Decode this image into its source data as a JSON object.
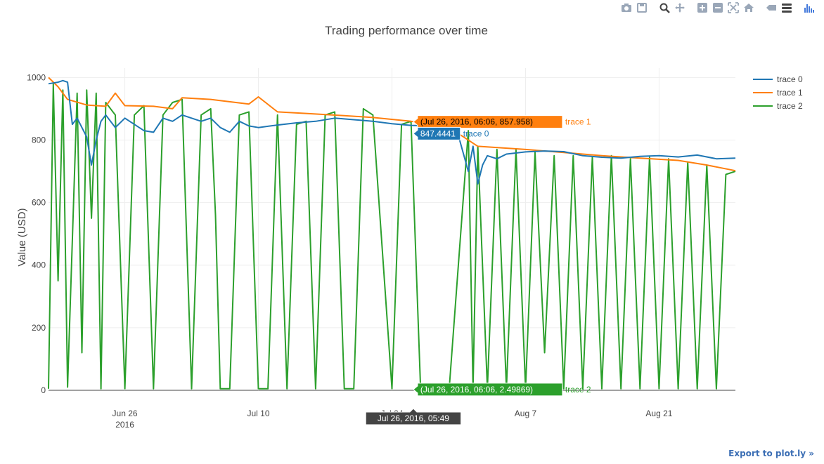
{
  "modebar": {
    "buttons": [
      {
        "name": "camera-icon",
        "group": 0
      },
      {
        "name": "save-icon",
        "group": 0
      },
      {
        "name": "zoom-icon",
        "group": 1
      },
      {
        "name": "pan-icon",
        "group": 1
      },
      {
        "name": "zoom-in-icon",
        "group": 2
      },
      {
        "name": "zoom-out-icon",
        "group": 2
      },
      {
        "name": "autoscale-icon",
        "group": 2
      },
      {
        "name": "reset-axes-icon",
        "group": 2
      },
      {
        "name": "show-closest-icon",
        "group": 3
      },
      {
        "name": "compare-icon",
        "group": 3
      },
      {
        "name": "plotly-logo-icon",
        "group": 4
      }
    ],
    "icon_color": "#9aa7b8",
    "logo_color": "#447adb"
  },
  "export_label": "Export to plot.ly »",
  "chart_data": {
    "type": "line",
    "title": "Trading performance over time",
    "xlabel": "",
    "ylabel": "Value (USD)",
    "xlim": [
      "2016-06-18",
      "2016-08-29"
    ],
    "ylim": [
      0,
      1030
    ],
    "yticks": [
      0,
      200,
      400,
      600,
      800,
      1000
    ],
    "xticks": [
      {
        "date": "2016-06-26",
        "label": "Jun 26",
        "sublabel": "2016"
      },
      {
        "date": "2016-07-10",
        "label": "Jul 10",
        "sublabel": ""
      },
      {
        "date": "2016-07-24",
        "label": "Jul 24",
        "sublabel": ""
      },
      {
        "date": "2016-08-07",
        "label": "Aug 7",
        "sublabel": ""
      },
      {
        "date": "2016-08-21",
        "label": "Aug 21",
        "sublabel": ""
      }
    ],
    "grid": true,
    "legend_position": "top-right",
    "series": [
      {
        "name": "trace 0",
        "color": "#1f77b4",
        "x": [
          "2016-06-18",
          "2016-06-19",
          "2016-06-19T12:00",
          "2016-06-20",
          "2016-06-20T12:00",
          "2016-06-21",
          "2016-06-21T12:00",
          "2016-06-22",
          "2016-06-22T12:00",
          "2016-06-23",
          "2016-06-23T12:00",
          "2016-06-24",
          "2016-06-25",
          "2016-06-26",
          "2016-06-27",
          "2016-06-28",
          "2016-06-29",
          "2016-06-30",
          "2016-07-01",
          "2016-07-02",
          "2016-07-03",
          "2016-07-04",
          "2016-07-05",
          "2016-07-06",
          "2016-07-07",
          "2016-07-08",
          "2016-07-09",
          "2016-07-10",
          "2016-07-12",
          "2016-07-14",
          "2016-07-16",
          "2016-07-18",
          "2016-07-20",
          "2016-07-22",
          "2016-07-24",
          "2016-07-26",
          "2016-07-28",
          "2016-07-30",
          "2016-07-31",
          "2016-08-01",
          "2016-08-01T12:00",
          "2016-08-02",
          "2016-08-02T12:00",
          "2016-08-03",
          "2016-08-04",
          "2016-08-05",
          "2016-08-07",
          "2016-08-09",
          "2016-08-11",
          "2016-08-13",
          "2016-08-15",
          "2016-08-17",
          "2016-08-19",
          "2016-08-21",
          "2016-08-23",
          "2016-08-25",
          "2016-08-27",
          "2016-08-29"
        ],
        "y": [
          980,
          985,
          990,
          985,
          850,
          870,
          840,
          810,
          720,
          800,
          860,
          880,
          840,
          870,
          850,
          830,
          825,
          870,
          860,
          880,
          870,
          860,
          870,
          840,
          825,
          860,
          845,
          840,
          848,
          855,
          860,
          870,
          865,
          860,
          852,
          847,
          845,
          830,
          810,
          700,
          780,
          660,
          720,
          750,
          740,
          755,
          762,
          765,
          763,
          750,
          745,
          742,
          748,
          750,
          746,
          752,
          740,
          742
        ]
      },
      {
        "name": "trace 1",
        "color": "#ff7f0e",
        "x": [
          "2016-06-18",
          "2016-06-19",
          "2016-06-20",
          "2016-06-22",
          "2016-06-24",
          "2016-06-25",
          "2016-06-26",
          "2016-06-29",
          "2016-07-01",
          "2016-07-02",
          "2016-07-05",
          "2016-07-09",
          "2016-07-10",
          "2016-07-12",
          "2016-07-15",
          "2016-07-19",
          "2016-07-22",
          "2016-07-26",
          "2016-07-30",
          "2016-08-02",
          "2016-08-07",
          "2016-08-11",
          "2016-08-15",
          "2016-08-19",
          "2016-08-23",
          "2016-08-26",
          "2016-08-29"
        ],
        "y": [
          1000,
          970,
          930,
          912,
          908,
          950,
          910,
          908,
          900,
          935,
          930,
          915,
          938,
          890,
          885,
          878,
          872,
          860,
          840,
          780,
          770,
          760,
          750,
          742,
          735,
          720,
          702
        ]
      },
      {
        "name": "trace 2",
        "color": "#2ca02c",
        "x": [
          "2016-06-18",
          "2016-06-18T12:00",
          "2016-06-19",
          "2016-06-19T12:00",
          "2016-06-20",
          "2016-06-21",
          "2016-06-21T12:00",
          "2016-06-22",
          "2016-06-22T12:00",
          "2016-06-23",
          "2016-06-23T12:00",
          "2016-06-24",
          "2016-06-25",
          "2016-06-26",
          "2016-06-27",
          "2016-06-28",
          "2016-06-29",
          "2016-06-30",
          "2016-07-01",
          "2016-07-02",
          "2016-07-03",
          "2016-07-04",
          "2016-07-05",
          "2016-07-05T12:00",
          "2016-07-06",
          "2016-07-07",
          "2016-07-08",
          "2016-07-09",
          "2016-07-10",
          "2016-07-11",
          "2016-07-12",
          "2016-07-13",
          "2016-07-14",
          "2016-07-15",
          "2016-07-16",
          "2016-07-17",
          "2016-07-18",
          "2016-07-19",
          "2016-07-20",
          "2016-07-21",
          "2016-07-22",
          "2016-07-24",
          "2016-07-25",
          "2016-07-26",
          "2016-07-27",
          "2016-07-28",
          "2016-07-30",
          "2016-08-01",
          "2016-08-01T12:00",
          "2016-08-02",
          "2016-08-03",
          "2016-08-04",
          "2016-08-05",
          "2016-08-06",
          "2016-08-07",
          "2016-08-08",
          "2016-08-09",
          "2016-08-10",
          "2016-08-11",
          "2016-08-12",
          "2016-08-13",
          "2016-08-14",
          "2016-08-15",
          "2016-08-16",
          "2016-08-17",
          "2016-08-18",
          "2016-08-19",
          "2016-08-20",
          "2016-08-21",
          "2016-08-22",
          "2016-08-23",
          "2016-08-24",
          "2016-08-25",
          "2016-08-26",
          "2016-08-27",
          "2016-08-28",
          "2016-08-29"
        ],
        "y": [
          5,
          980,
          350,
          960,
          10,
          950,
          120,
          960,
          550,
          950,
          5,
          920,
          880,
          5,
          880,
          910,
          5,
          880,
          920,
          930,
          5,
          880,
          900,
          560,
          5,
          5,
          880,
          890,
          5,
          5,
          880,
          5,
          850,
          860,
          5,
          880,
          890,
          5,
          5,
          900,
          880,
          5,
          850,
          860,
          5,
          2,
          5,
          830,
          5,
          780,
          5,
          770,
          5,
          770,
          5,
          760,
          120,
          750,
          5,
          750,
          5,
          745,
          5,
          750,
          5,
          740,
          5,
          745,
          5,
          740,
          5,
          730,
          5,
          720,
          5,
          690,
          700
        ]
      }
    ],
    "hover": {
      "x_label": "Jul 26, 2016, 05:49",
      "x_date": "2016-07-26T05:49",
      "labels": [
        {
          "series": "trace 1",
          "text": "(Jul 26, 2016, 06:06, 857.958)",
          "y": 857.958,
          "bg": "#ff7f0e",
          "fg": "#000000"
        },
        {
          "series": "trace 0",
          "text": "847.4441",
          "y": 847.4441,
          "bg": "#1f77b4",
          "fg": "#ffffff"
        },
        {
          "series": "trace 2",
          "text": "(Jul 26, 2016, 06:06, 2.49869)",
          "y": 2.49869,
          "bg": "#2ca02c",
          "fg": "#ffffff"
        }
      ]
    }
  }
}
